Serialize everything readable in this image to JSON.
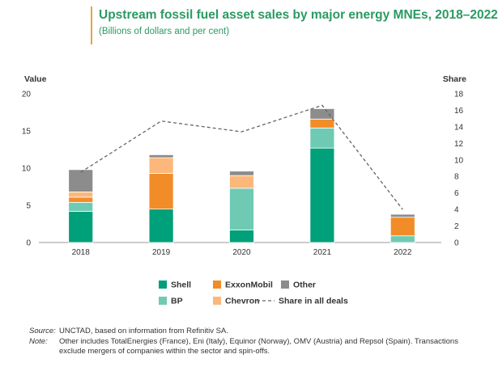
{
  "header": {
    "title": "Upstream fossil fuel asset sales by major energy MNEs, 2018–2022",
    "subtitle": "(Billions of dollars and per cent)"
  },
  "colors": {
    "shell": "#00a07a",
    "exxonmobil": "#f28c28",
    "other": "#8c8c8c",
    "bp": "#6fcab3",
    "chevron": "#fbb87a",
    "share_line": "#666666",
    "title": "#2a9a62",
    "accent": "#e8a33d"
  },
  "chart_data": {
    "type": "bar",
    "stacked": true,
    "categories": [
      "2018",
      "2019",
      "2020",
      "2021",
      "2022"
    ],
    "series": [
      {
        "name": "Shell",
        "key": "shell",
        "values": [
          4.2,
          4.5,
          1.7,
          12.7,
          0
        ]
      },
      {
        "name": "BP",
        "key": "bp",
        "values": [
          1.2,
          0,
          5.6,
          2.7,
          0.9
        ]
      },
      {
        "name": "ExxonMobil",
        "key": "exxonmobil",
        "values": [
          0.7,
          4.8,
          0,
          1.2,
          2.5
        ]
      },
      {
        "name": "Chevron",
        "key": "chevron",
        "values": [
          0.7,
          2.1,
          1.7,
          0,
          0
        ]
      },
      {
        "name": "Other",
        "key": "other",
        "values": [
          3.0,
          0.4,
          0.6,
          1.4,
          0.4
        ]
      }
    ],
    "line_series": {
      "name": "Share in all deals",
      "axis": "right",
      "style": "dashed",
      "values": [
        8.5,
        14.7,
        13.4,
        16.6,
        4.0
      ]
    },
    "y_left": {
      "label": "Value",
      "ticks": [
        0,
        5,
        10,
        15,
        20
      ],
      "range": [
        0,
        20
      ]
    },
    "y_right": {
      "label": "Share",
      "ticks": [
        0,
        2,
        4,
        6,
        8,
        10,
        12,
        14,
        16,
        18
      ],
      "range": [
        0,
        18
      ]
    },
    "legend_position": "bottom",
    "legend": [
      {
        "label": "Shell",
        "key": "shell"
      },
      {
        "label": "ExxonMobil",
        "key": "exxonmobil"
      },
      {
        "label": "Other",
        "key": "other"
      },
      {
        "label": "BP",
        "key": "bp"
      },
      {
        "label": "Chevron",
        "key": "chevron"
      },
      {
        "label": "Share in all deals",
        "key": "share_line"
      }
    ]
  },
  "footer": {
    "source_label": "Source:",
    "source_text": "UNCTAD, based on information from Refinitiv SA.",
    "note_label": "Note:",
    "note_text": "Other includes TotalEnergies (France), Eni (Italy), Equinor (Norway), OMV (Austria) and Repsol (Spain). Transactions exclude mergers of companies within the sector and spin-offs."
  }
}
